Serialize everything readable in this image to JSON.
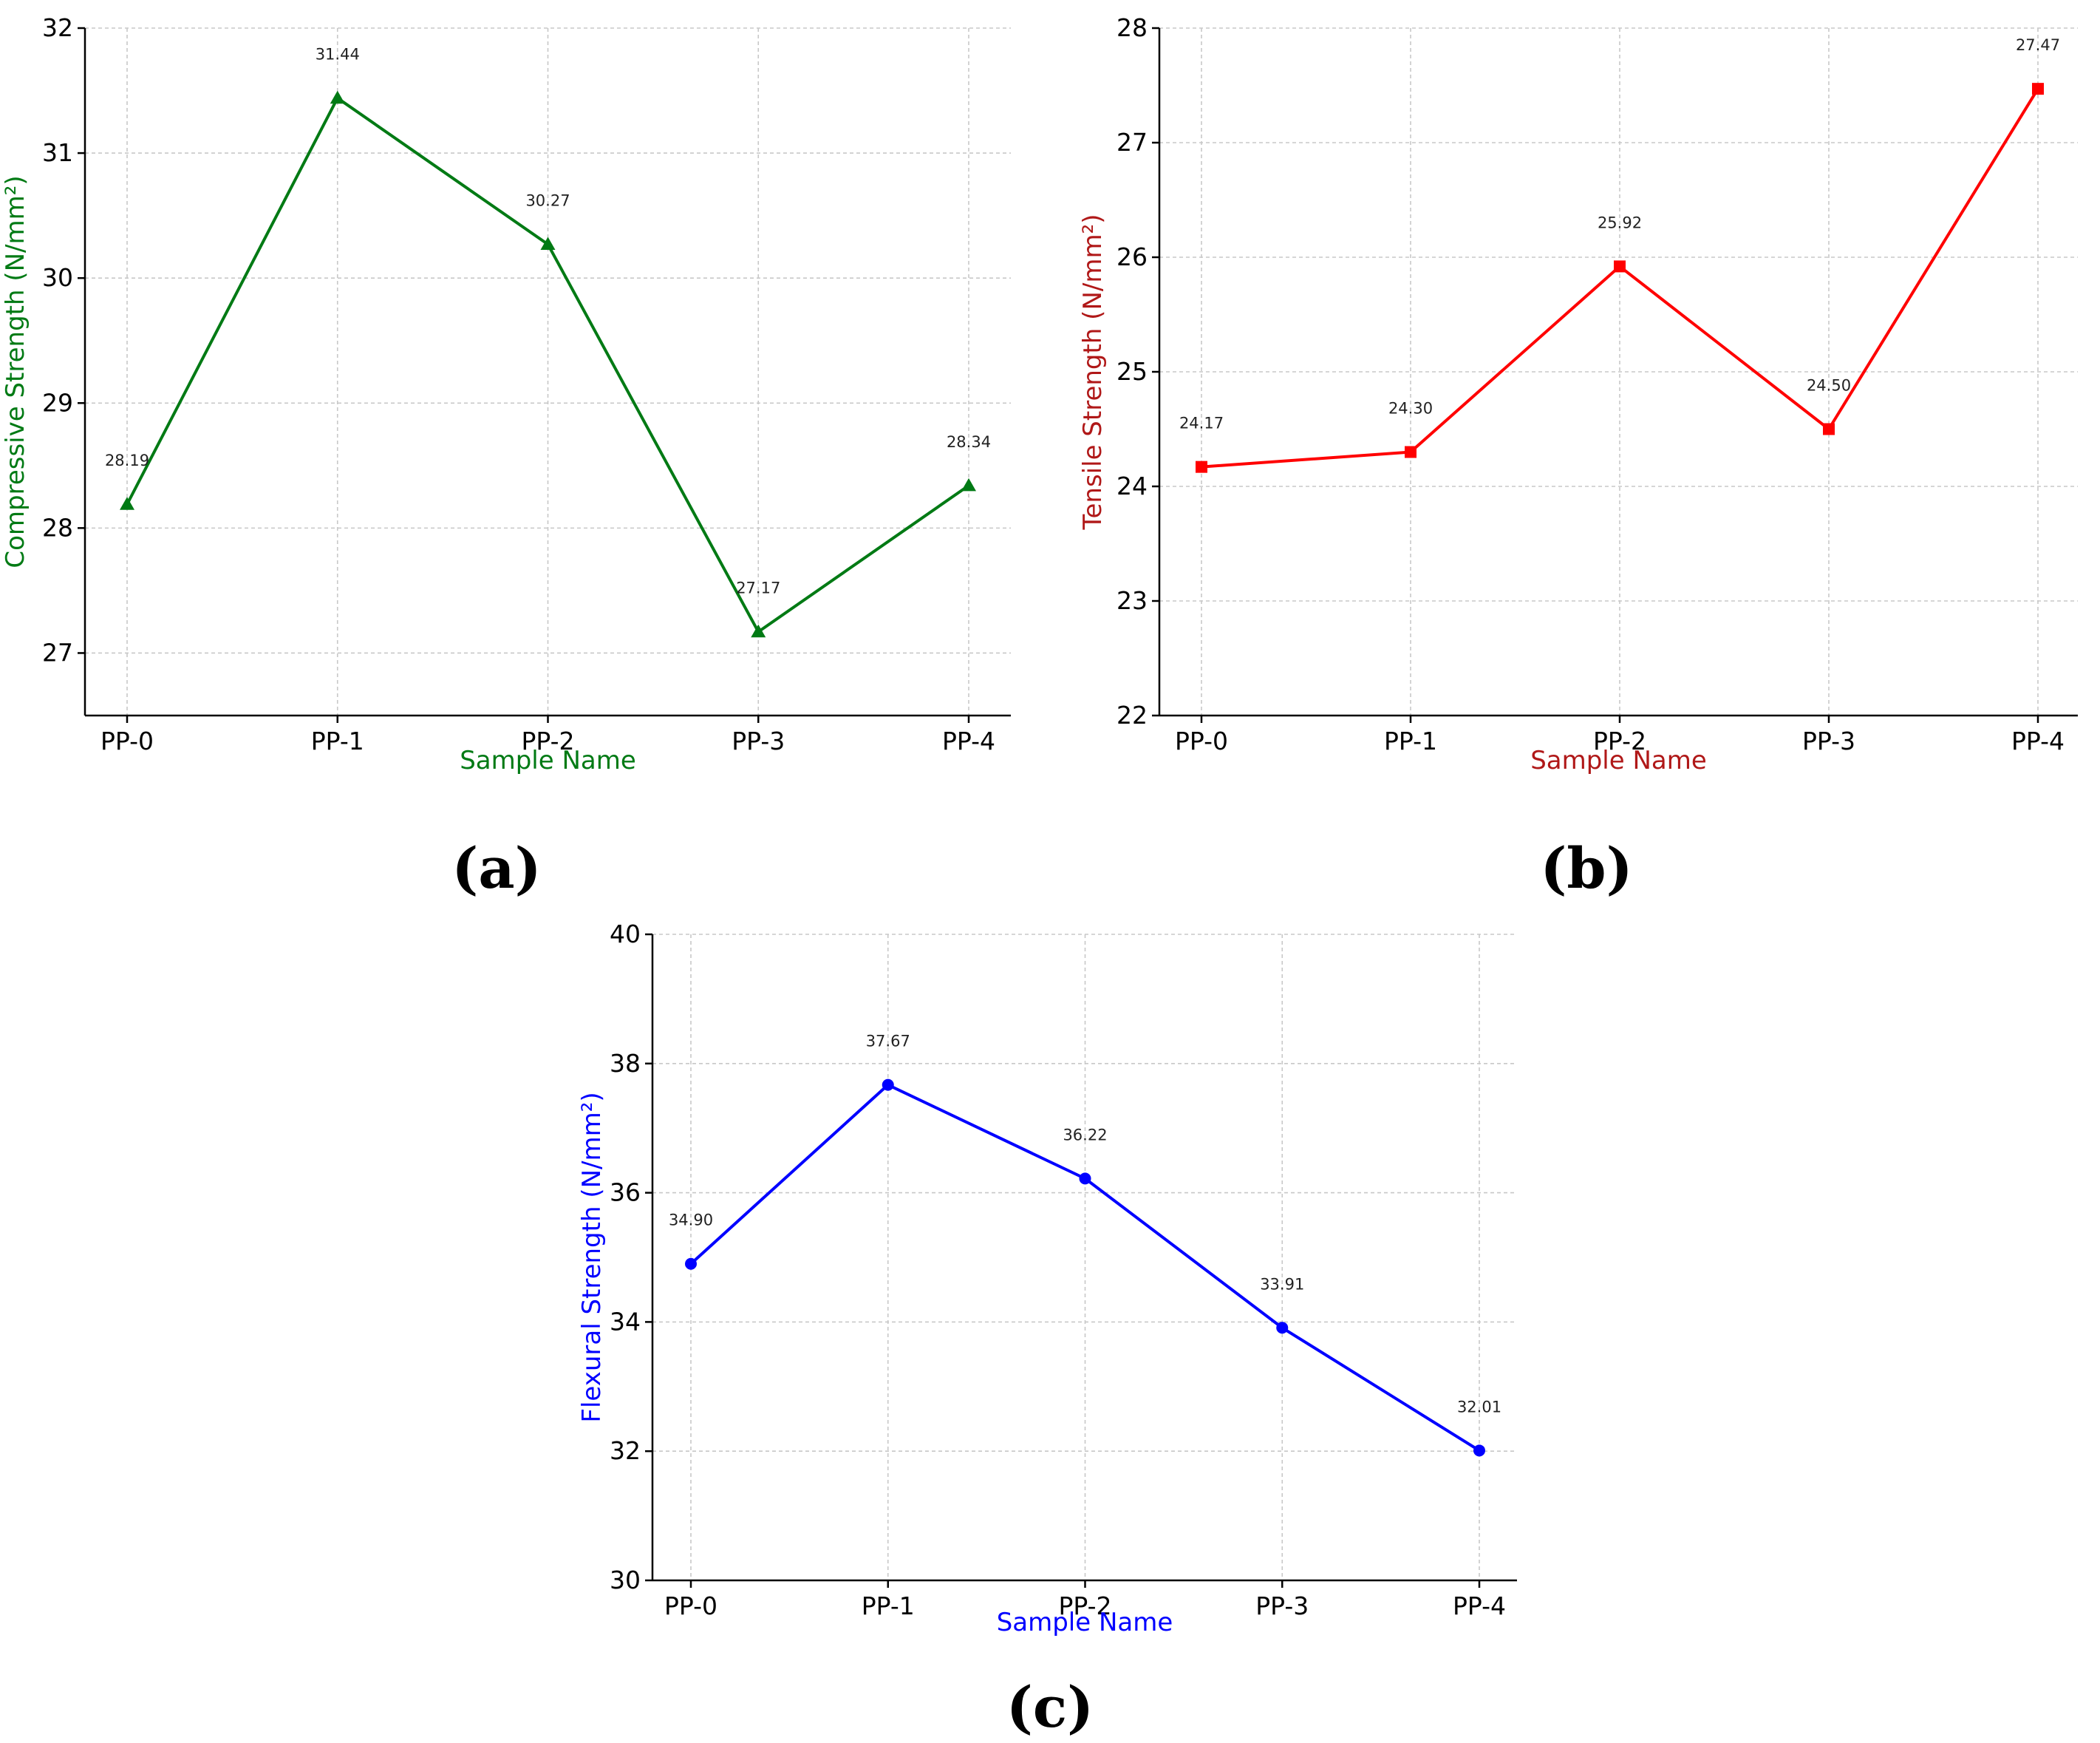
{
  "chart_data": [
    {
      "panel_label": "(a)",
      "type": "line",
      "categories": [
        "PP-0",
        "PP-1",
        "PP-2",
        "PP-3",
        "PP-4"
      ],
      "series": [
        {
          "values": [
            28.19,
            31.44,
            30.27,
            27.17,
            28.34
          ]
        }
      ],
      "data_labels": [
        "28.19",
        "31.44",
        "30.27",
        "27.17",
        "28.34"
      ],
      "xlabel": "Sample Name",
      "ylabel": "Compressive Strength (N/mm²)",
      "ylim": [
        26.5,
        32
      ],
      "yticks": [
        27,
        28,
        29,
        30,
        31,
        32
      ],
      "marker": "triangle",
      "color": "#007a14",
      "grid": true
    },
    {
      "panel_label": "(b)",
      "type": "line",
      "categories": [
        "PP-0",
        "PP-1",
        "PP-2",
        "PP-3",
        "PP-4"
      ],
      "series": [
        {
          "values": [
            24.17,
            24.3,
            25.92,
            24.5,
            27.47
          ]
        }
      ],
      "data_labels": [
        "24.17",
        "24.30",
        "25.92",
        "24.50",
        "27.47"
      ],
      "xlabel": "Sample Name",
      "ylabel": "Tensile Strength (N/mm²)",
      "ylim": [
        22,
        28
      ],
      "yticks": [
        22,
        23,
        24,
        25,
        26,
        27,
        28
      ],
      "marker": "square",
      "color": "#ff0000",
      "label_color": "#b01818",
      "grid": true
    },
    {
      "panel_label": "(c)",
      "type": "line",
      "categories": [
        "PP-0",
        "PP-1",
        "PP-2",
        "PP-3",
        "PP-4"
      ],
      "series": [
        {
          "values": [
            34.9,
            37.67,
            36.22,
            33.91,
            32.01
          ]
        }
      ],
      "data_labels": [
        "34.90",
        "37.67",
        "36.22",
        "33.91",
        "32.01"
      ],
      "xlabel": "Sample Name",
      "ylabel": "Flexural Strength (N/mm²)",
      "ylim": [
        30,
        40
      ],
      "yticks": [
        30,
        32,
        34,
        36,
        38,
        40
      ],
      "marker": "circle",
      "color": "#0000ff",
      "grid": true
    }
  ]
}
